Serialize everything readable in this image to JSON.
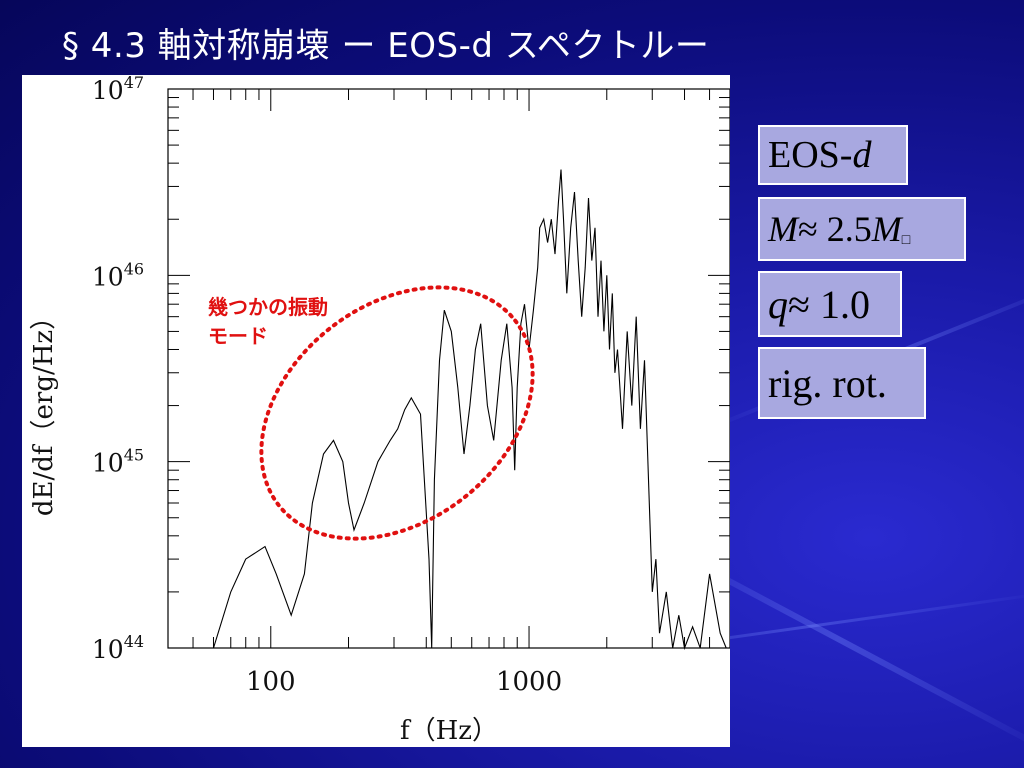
{
  "slide": {
    "title": "§ 4.3 軸対称崩壊 ー EOS-d スペクトルー"
  },
  "annotation": {
    "line1": "幾つかの振動",
    "line2": "モード",
    "color": "#e01010"
  },
  "params": {
    "eos_prefix": "EOS-",
    "eos_italic": "d",
    "mass_var": "M",
    "mass_op": " ≈ 2.5",
    "mass_unit_var": "M",
    "mass_sub": "□",
    "q_var": "q",
    "q_rest": " ≈ 1.0",
    "rotation": "rig. rot."
  },
  "chart_data": {
    "type": "line",
    "xlabel": "f（Hz）",
    "ylabel": "dE/df（erg/Hz）",
    "xscale": "log",
    "yscale": "log",
    "xlim": [
      40,
      6000
    ],
    "ylim": [
      1e+44,
      1e+47
    ],
    "x_tick_labels": [
      "100",
      "1000"
    ],
    "y_tick_labels": [
      {
        "base": "10",
        "exp": "44"
      },
      {
        "base": "10",
        "exp": "45"
      },
      {
        "base": "10",
        "exp": "46"
      },
      {
        "base": "10",
        "exp": "47"
      }
    ],
    "series": [
      {
        "x": [
          60,
          70,
          80,
          95,
          105,
          120,
          135,
          145,
          160,
          175,
          190,
          200,
          210,
          230,
          260,
          290,
          310,
          330,
          350,
          380,
          410,
          420,
          430,
          450,
          470,
          500,
          530,
          560,
          590,
          620,
          650,
          690,
          730,
          780,
          820,
          860,
          880,
          900,
          930,
          960,
          1000,
          1040,
          1080,
          1100,
          1140,
          1180,
          1220,
          1260,
          1300,
          1330,
          1360,
          1400,
          1450,
          1500,
          1550,
          1600,
          1650,
          1700,
          1750,
          1800,
          1850,
          1900,
          1950,
          2000,
          2050,
          2100,
          2150,
          2200,
          2300,
          2400,
          2500,
          2600,
          2700,
          2800,
          2900,
          3000,
          3100,
          3200,
          3400,
          3600,
          3800,
          4000,
          4300,
          4600,
          5000,
          5500,
          5800
        ],
        "y": [
          1e+44,
          2e+44,
          3e+44,
          3.5e+44,
          2.5e+44,
          1.5e+44,
          2.5e+44,
          6e+44,
          1.1e+45,
          1.3e+45,
          1e+45,
          6e+44,
          4.3e+44,
          6e+44,
          1e+45,
          1.3e+45,
          1.5e+45,
          1.9e+45,
          2.2e+45,
          1.8e+45,
          3e+44,
          1e+44,
          8e+44,
          3.5e+45,
          6.5e+45,
          5e+45,
          2.5e+45,
          1.1e+45,
          2e+45,
          4e+45,
          5.5e+45,
          2e+45,
          1.3e+45,
          3.5e+45,
          5.5e+45,
          2.5e+45,
          9e+44,
          2.5e+45,
          5.5e+45,
          7e+45,
          4e+45,
          6.5e+45,
          1.1e+46,
          1.8e+46,
          2e+46,
          1.5e+46,
          2e+46,
          1.3e+46,
          2.5e+46,
          3.7e+46,
          2e+46,
          8e+45,
          1.8e+46,
          2.8e+46,
          1.2e+46,
          6e+45,
          1.1e+46,
          2.6e+46,
          1.2e+46,
          1.8e+46,
          6e+45,
          1.2e+46,
          5e+45,
          1e+46,
          4e+45,
          8e+45,
          3e+45,
          4e+45,
          1.5e+45,
          5e+45,
          2e+45,
          6e+45,
          1.5e+45,
          3.5e+45,
          8e+44,
          2e+44,
          3e+44,
          1.2e+44,
          2e+44,
          1e+44,
          1.5e+44,
          1e+44,
          1.3e+44,
          1e+44,
          2.5e+44,
          1.2e+44,
          1e+44
        ]
      }
    ]
  }
}
